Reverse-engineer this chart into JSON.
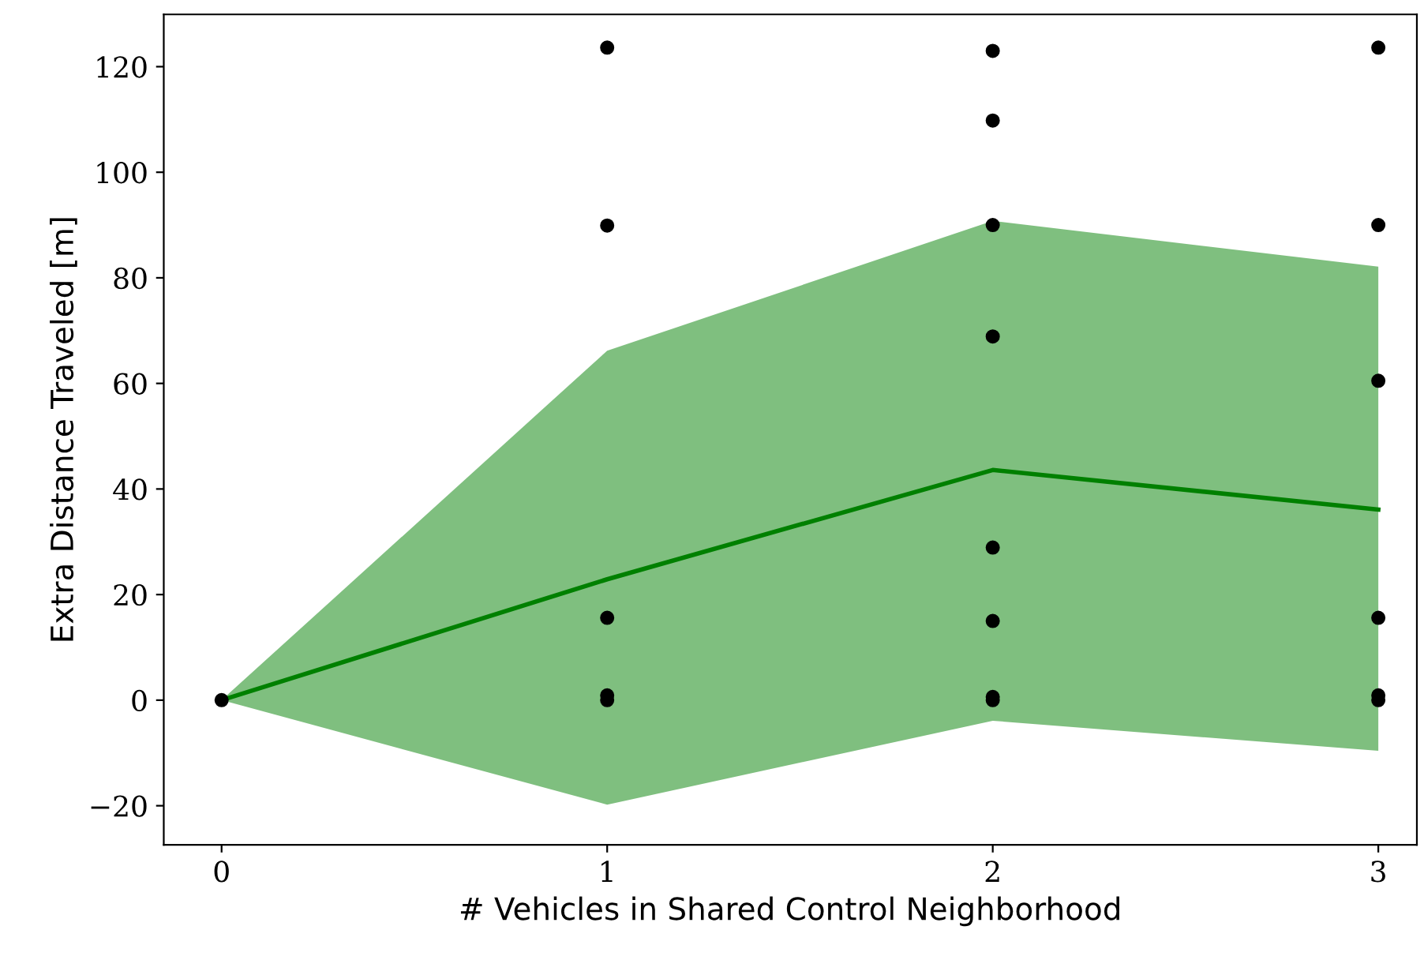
{
  "chart_data": {
    "type": "line",
    "xlabel": "# Vehicles in Shared Control Neighborhood",
    "ylabel": "Extra Distance Traveled [m]",
    "xlim": [
      -0.15,
      3.1
    ],
    "xticks": [
      0,
      1,
      2,
      3
    ],
    "ylim": [
      -27.4,
      129.9
    ],
    "yticks": [
      {
        "value": -20,
        "label": "−20"
      },
      0,
      20,
      40,
      60,
      80,
      100,
      120
    ],
    "grid": false,
    "series": [
      {
        "color": "#008000",
        "x": [
          0,
          1,
          2,
          3
        ],
        "values": [
          0,
          22.9,
          43.6,
          36.1
        ],
        "lower": [
          0,
          -19.8,
          -3.9,
          -9.6
        ],
        "upper": [
          0,
          66.2,
          90.8,
          82.1
        ],
        "marker": "none"
      },
      {
        "type": "scatter",
        "color": "#000000",
        "marker": "circle",
        "x": [
          0,
          1,
          1,
          1,
          1,
          1,
          2,
          2,
          2,
          2,
          2,
          2,
          2,
          2,
          3,
          3,
          3,
          3,
          3,
          3
        ],
        "values": [
          0,
          123.6,
          89.9,
          15.6,
          0.9,
          0,
          123,
          109.8,
          90,
          68.9,
          28.9,
          15,
          0.6,
          0,
          123.6,
          90,
          60.5,
          15.6,
          0.9,
          0
        ]
      }
    ]
  }
}
